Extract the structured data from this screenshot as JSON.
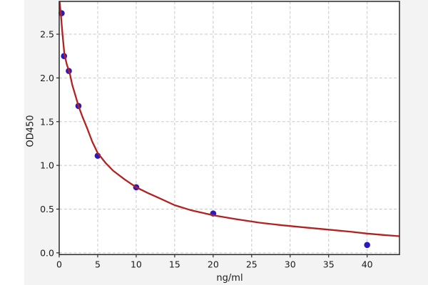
{
  "chart_data": {
    "type": "scatter",
    "title": "",
    "xlabel": "ng/ml",
    "ylabel": "OD450",
    "series": [
      {
        "name": "standard-points",
        "kind": "points",
        "x": [
          0.3125,
          0.625,
          1.25,
          2.5,
          5,
          10,
          20,
          40
        ],
        "y": [
          2.74,
          2.25,
          2.08,
          1.68,
          1.11,
          0.75,
          0.45,
          0.09
        ],
        "color": "#2a18c0",
        "marker_radius": 4.3
      },
      {
        "name": "4pl-fit-curve",
        "kind": "curve",
        "points": [
          [
            0.06,
            2.87
          ],
          [
            0.2,
            2.74
          ],
          [
            0.43,
            2.5
          ],
          [
            0.68,
            2.27
          ],
          [
            1.0,
            2.15
          ],
          [
            1.35,
            2.06
          ],
          [
            1.7,
            1.92
          ],
          [
            2.1,
            1.8
          ],
          [
            2.5,
            1.68
          ],
          [
            3.0,
            1.56
          ],
          [
            3.6,
            1.43
          ],
          [
            4.3,
            1.27
          ],
          [
            5.0,
            1.14
          ],
          [
            6.0,
            1.03
          ],
          [
            7.0,
            0.94
          ],
          [
            8.5,
            0.84
          ],
          [
            10,
            0.75
          ],
          [
            11.5,
            0.685
          ],
          [
            13,
            0.625
          ],
          [
            15,
            0.545
          ],
          [
            17,
            0.49
          ],
          [
            20,
            0.43
          ],
          [
            23,
            0.385
          ],
          [
            26,
            0.345
          ],
          [
            29,
            0.315
          ],
          [
            32,
            0.29
          ],
          [
            35,
            0.265
          ],
          [
            38,
            0.24
          ],
          [
            40,
            0.22
          ],
          [
            42,
            0.205
          ],
          [
            44.2,
            0.19
          ]
        ],
        "color": "#b22222",
        "stroke_width": 2.3
      }
    ],
    "xticks": [
      0,
      5,
      10,
      15,
      20,
      25,
      30,
      35,
      40
    ],
    "yticks": [
      0.0,
      0.5,
      1.0,
      1.5,
      2.0,
      2.5
    ],
    "ytick_labels": [
      "0.0",
      "0.5",
      "1.0",
      "1.5",
      "2.0",
      "2.5"
    ],
    "xlim": [
      0,
      44.2
    ],
    "ylim": [
      -0.02,
      2.875
    ],
    "grid": true,
    "legend": "none",
    "colors": {
      "figure_bg": "#f3f3f3",
      "plot_bg": "#ffffff",
      "grid": "#c8c8c8",
      "spine": "#2a2a2a",
      "tick": "#2a2a2a",
      "text": "#1a1a1a"
    }
  }
}
